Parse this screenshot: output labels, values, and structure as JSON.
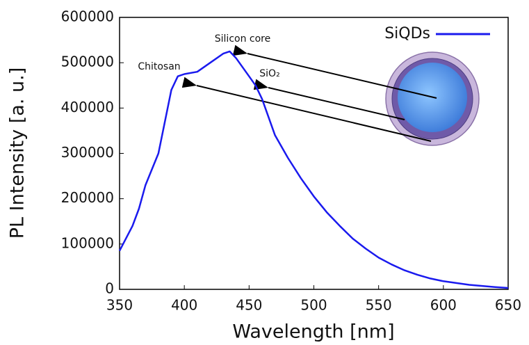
{
  "chart_data": {
    "type": "line",
    "x_label": "Wavelength [nm]",
    "y_label": "PL Intensity [a. u.]",
    "x": [
      350,
      360,
      365,
      370,
      380,
      390,
      395,
      400,
      410,
      420,
      430,
      435,
      440,
      445,
      450,
      455,
      460,
      470,
      480,
      490,
      500,
      510,
      520,
      530,
      540,
      550,
      560,
      570,
      580,
      590,
      600,
      620,
      640,
      650
    ],
    "series": [
      {
        "name": "SiQDs",
        "color": "#1a1aee",
        "values": [
          85000,
          140000,
          178000,
          230000,
          300000,
          440000,
          470000,
          475000,
          480000,
          500000,
          520000,
          525000,
          510000,
          490000,
          470000,
          450000,
          420000,
          340000,
          290000,
          245000,
          205000,
          170000,
          140000,
          112000,
          90000,
          70000,
          55000,
          42000,
          32000,
          24000,
          18000,
          10000,
          5000,
          3000
        ]
      }
    ],
    "xlim": [
      350,
      650
    ],
    "xticks": [
      350,
      400,
      450,
      500,
      550,
      600,
      650
    ],
    "ylim": [
      0,
      600000
    ],
    "yticks": [
      0,
      100000,
      200000,
      300000,
      400000,
      500000,
      600000
    ],
    "grid": false,
    "legend": "top-right",
    "annotations": [
      "Silicon core",
      "Chitosan",
      "SiO₂"
    ]
  }
}
